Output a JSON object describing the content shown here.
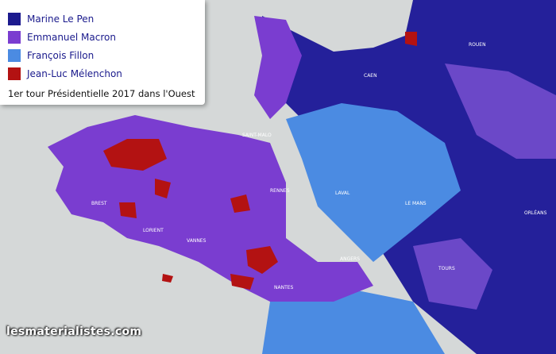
{
  "legend": [
    {
      "label": "Marine Le Pen",
      "color": "#1c1a8e"
    },
    {
      "label": "Emmanuel Macron",
      "color": "#7a3dd0"
    },
    {
      "label": "François Fillon",
      "color": "#4b8be2"
    },
    {
      "label": "Jean-Luc Mélenchon",
      "color": "#b31212"
    }
  ],
  "caption": "1er tour Présidentielle 2017 dans l'Ouest",
  "watermark": "lesmaterialistes.com",
  "places": [
    "ROUEN",
    "CAEN",
    "SAINT-MALO",
    "RENNES",
    "LAVAL",
    "LE MANS",
    "ANGERS",
    "NANTES",
    "TOURS",
    "ORLÉANS",
    "BREST",
    "LORIENT",
    "VANNES"
  ]
}
